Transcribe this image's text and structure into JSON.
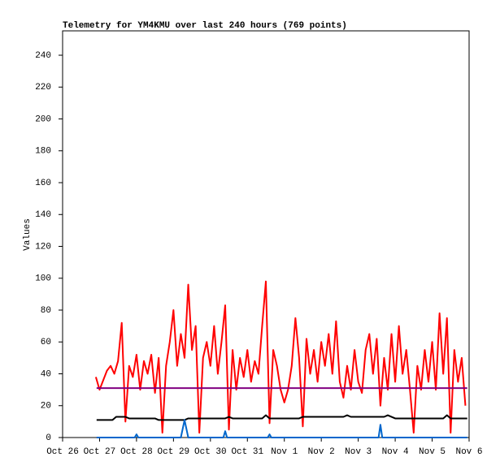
{
  "chart_data": {
    "type": "line",
    "title": "Telemetry for YM4KMU over last 240 hours (769 points)",
    "ylabel": "Values",
    "xlim": [
      0,
      11
    ],
    "xticks": [
      {
        "value": 0,
        "label": "Oct 26"
      },
      {
        "value": 1,
        "label": "Oct 27"
      },
      {
        "value": 2,
        "label": "Oct 28"
      },
      {
        "value": 3,
        "label": "Oct 29"
      },
      {
        "value": 4,
        "label": "Oct 30"
      },
      {
        "value": 5,
        "label": "Oct 31"
      },
      {
        "value": 6,
        "label": "Nov 1"
      },
      {
        "value": 7,
        "label": "Nov 2"
      },
      {
        "value": 8,
        "label": "Nov 3"
      },
      {
        "value": 9,
        "label": "Nov 4"
      },
      {
        "value": 10,
        "label": "Nov 5"
      },
      {
        "value": 11,
        "label": "Nov 6"
      }
    ],
    "ylim": [
      0,
      255.3
    ],
    "yticks": [
      0,
      20,
      40,
      60,
      80,
      100,
      120,
      140,
      160,
      180,
      200,
      220,
      240
    ],
    "grid": false,
    "series": [
      {
        "color": "#ff0000",
        "x": [
          0.9,
          1.0,
          1.1,
          1.2,
          1.3,
          1.4,
          1.5,
          1.6,
          1.7,
          1.8,
          1.9,
          2.0,
          2.1,
          2.2,
          2.3,
          2.4,
          2.5,
          2.6,
          2.7,
          2.8,
          2.9,
          3.0,
          3.1,
          3.2,
          3.3,
          3.4,
          3.5,
          3.6,
          3.7,
          3.8,
          3.9,
          4.0,
          4.1,
          4.2,
          4.3,
          4.4,
          4.5,
          4.6,
          4.7,
          4.8,
          4.9,
          5.0,
          5.1,
          5.2,
          5.3,
          5.4,
          5.5,
          5.6,
          5.7,
          5.8,
          5.9,
          6.0,
          6.1,
          6.2,
          6.3,
          6.4,
          6.5,
          6.6,
          6.7,
          6.8,
          6.9,
          7.0,
          7.1,
          7.2,
          7.3,
          7.4,
          7.5,
          7.6,
          7.7,
          7.8,
          7.9,
          8.0,
          8.1,
          8.2,
          8.3,
          8.4,
          8.5,
          8.6,
          8.7,
          8.8,
          8.9,
          9.0,
          9.1,
          9.2,
          9.3,
          9.4,
          9.5,
          9.6,
          9.7,
          9.8,
          9.9,
          10.0,
          10.1,
          10.2,
          10.3,
          10.4,
          10.5,
          10.6,
          10.7,
          10.8,
          10.9
        ],
        "values": [
          38,
          30,
          36,
          42,
          45,
          40,
          48,
          72,
          10,
          45,
          38,
          52,
          30,
          48,
          40,
          52,
          28,
          50,
          3,
          45,
          60,
          80,
          45,
          65,
          50,
          96,
          55,
          70,
          3,
          50,
          60,
          45,
          70,
          40,
          60,
          83,
          5,
          55,
          30,
          50,
          38,
          55,
          35,
          48,
          40,
          70,
          98,
          9,
          55,
          45,
          30,
          22,
          30,
          45,
          75,
          50,
          7,
          62,
          40,
          55,
          35,
          60,
          45,
          65,
          40,
          73,
          35,
          25,
          45,
          30,
          55,
          35,
          28,
          55,
          65,
          40,
          62,
          20,
          50,
          30,
          65,
          35,
          70,
          40,
          55,
          30,
          3,
          45,
          30,
          55,
          35,
          60,
          30,
          78,
          40,
          75,
          3,
          55,
          35,
          50,
          20
        ]
      },
      {
        "color": "#800080",
        "x": [
          0.92,
          10.95
        ],
        "values": [
          31,
          31
        ]
      },
      {
        "color": "#000000",
        "x": [
          0.92,
          1.35,
          1.45,
          1.7,
          1.8,
          2.5,
          2.6,
          3.3,
          3.4,
          4.4,
          4.5,
          4.6,
          5.4,
          5.5,
          5.6,
          6.4,
          6.5,
          7.6,
          7.7,
          7.8,
          8.7,
          8.8,
          9.0,
          10.3,
          10.4,
          10.5,
          10.95
        ],
        "values": [
          11,
          11,
          13,
          13,
          12,
          12,
          11,
          11,
          12,
          12,
          13,
          12,
          12,
          14,
          12,
          12,
          13,
          13,
          14,
          13,
          13,
          14,
          12,
          12,
          14,
          12,
          12
        ]
      },
      {
        "color": "#0066cc",
        "x": [
          0.92,
          1.95,
          2.0,
          2.05,
          3.2,
          3.3,
          3.4,
          4.35,
          4.4,
          4.45,
          5.55,
          5.6,
          5.65,
          8.55,
          8.6,
          8.65,
          10.95
        ],
        "values": [
          0,
          0,
          2,
          0,
          0,
          11,
          0,
          0,
          4,
          0,
          0,
          2,
          0,
          0,
          8,
          0,
          0
        ]
      }
    ]
  }
}
